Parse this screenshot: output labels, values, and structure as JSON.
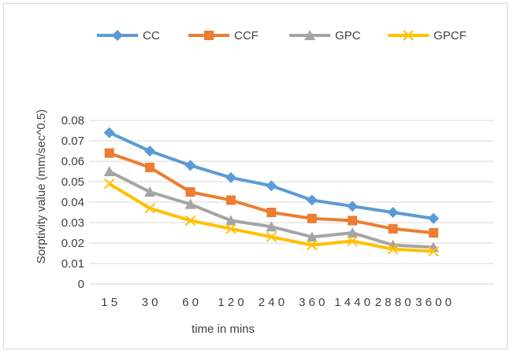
{
  "chart_data": {
    "type": "line",
    "categories": [
      "1 5",
      "3 0",
      "6 0",
      "1 2 0",
      "2 4 0",
      "3 6 0",
      "1 4 4 0",
      "2 8 8 0",
      "3 6 0 0"
    ],
    "series": [
      {
        "name": "CC",
        "color": "#5B9BD5",
        "marker": "diamond",
        "values": [
          0.074,
          0.065,
          0.058,
          0.052,
          0.048,
          0.041,
          0.038,
          0.035,
          0.032
        ]
      },
      {
        "name": "CCF",
        "color": "#ED7D31",
        "marker": "square",
        "values": [
          0.064,
          0.057,
          0.045,
          0.041,
          0.035,
          0.032,
          0.031,
          0.027,
          0.025
        ]
      },
      {
        "name": "GPC",
        "color": "#A5A5A5",
        "marker": "triangle",
        "values": [
          0.055,
          0.045,
          0.039,
          0.031,
          0.028,
          0.023,
          0.025,
          0.019,
          0.018
        ]
      },
      {
        "name": "GPCF",
        "color": "#FFC000",
        "marker": "x",
        "values": [
          0.049,
          0.037,
          0.031,
          0.027,
          0.023,
          0.019,
          0.021,
          0.017,
          0.016
        ]
      }
    ],
    "xlabel": "time in mins",
    "ylabel": "Sorptivity value (mm/sec^0.5)",
    "ylim": [
      0,
      0.08
    ],
    "yticks": [
      "0",
      "0.01",
      "0.02",
      "0.03",
      "0.04",
      "0.05",
      "0.06",
      "0.07",
      "0.08"
    ],
    "grid": true,
    "legend_position": "top"
  }
}
